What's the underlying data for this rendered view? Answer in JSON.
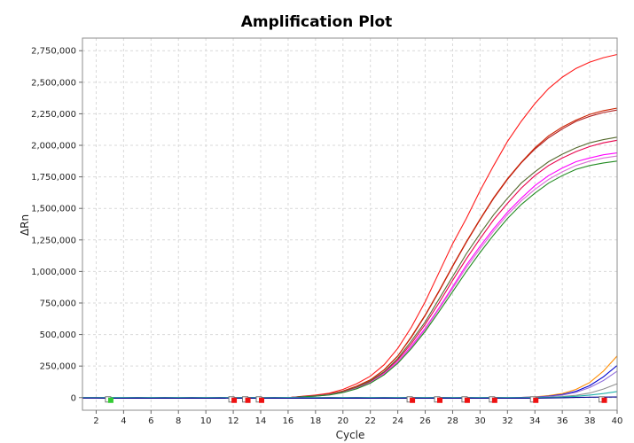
{
  "chart_data": {
    "type": "line",
    "title": "Amplification Plot",
    "xlabel": "Cycle",
    "ylabel": "ΔRn",
    "xlim": [
      1,
      40
    ],
    "ylim": [
      -100000,
      2850000
    ],
    "grid": true,
    "legend": "none",
    "x_ticks": [
      2,
      4,
      6,
      8,
      10,
      12,
      14,
      16,
      18,
      20,
      22,
      24,
      26,
      28,
      30,
      32,
      34,
      36,
      38,
      40
    ],
    "y_ticks": [
      0,
      250000,
      500000,
      750000,
      1000000,
      1250000,
      1500000,
      1750000,
      2000000,
      2250000,
      2500000,
      2750000
    ],
    "x": [
      1,
      2,
      3,
      4,
      5,
      6,
      7,
      8,
      9,
      10,
      11,
      12,
      13,
      14,
      15,
      16,
      17,
      18,
      19,
      20,
      21,
      22,
      23,
      24,
      25,
      26,
      27,
      28,
      29,
      30,
      31,
      32,
      33,
      34,
      35,
      36,
      37,
      38,
      39,
      40
    ],
    "series": [
      {
        "color": "#ff1a1a",
        "values": [
          0,
          0,
          0,
          0,
          0,
          0,
          0,
          0,
          0,
          0,
          0,
          0,
          0,
          0,
          0,
          0,
          10000,
          20000,
          35000,
          65000,
          110000,
          170000,
          260000,
          390000,
          560000,
          760000,
          990000,
          1220000,
          1420000,
          1640000,
          1840000,
          2030000,
          2190000,
          2330000,
          2450000,
          2540000,
          2610000,
          2660000,
          2695000,
          2720000
        ]
      },
      {
        "color": "#b22222",
        "values": [
          0,
          0,
          0,
          0,
          0,
          0,
          0,
          0,
          0,
          0,
          0,
          0,
          0,
          0,
          0,
          0,
          8000,
          16000,
          28000,
          52000,
          90000,
          140000,
          220000,
          330000,
          480000,
          650000,
          840000,
          1040000,
          1230000,
          1410000,
          1580000,
          1730000,
          1860000,
          1970000,
          2060000,
          2130000,
          2190000,
          2230000,
          2260000,
          2280000
        ]
      },
      {
        "color": "#cc2200",
        "values": [
          0,
          0,
          0,
          0,
          0,
          0,
          0,
          0,
          0,
          0,
          0,
          0,
          0,
          0,
          0,
          0,
          8000,
          16000,
          28000,
          52000,
          90000,
          140000,
          220000,
          330000,
          485000,
          655000,
          845000,
          1045000,
          1235000,
          1415000,
          1585000,
          1735000,
          1865000,
          1980000,
          2075000,
          2145000,
          2200000,
          2245000,
          2275000,
          2295000
        ]
      },
      {
        "color": "#e8004c",
        "values": [
          0,
          0,
          0,
          0,
          0,
          0,
          0,
          0,
          0,
          0,
          0,
          0,
          0,
          0,
          0,
          0,
          7000,
          14000,
          25000,
          46000,
          80000,
          128000,
          200000,
          300000,
          430000,
          580000,
          750000,
          930000,
          1100000,
          1260000,
          1410000,
          1540000,
          1660000,
          1760000,
          1840000,
          1900000,
          1950000,
          1990000,
          2020000,
          2040000
        ]
      },
      {
        "color": "#556b2f",
        "values": [
          0,
          0,
          0,
          0,
          0,
          0,
          0,
          0,
          0,
          0,
          0,
          0,
          0,
          0,
          0,
          0,
          7000,
          14000,
          25000,
          47000,
          82000,
          132000,
          205000,
          310000,
          450000,
          600000,
          780000,
          960000,
          1140000,
          1300000,
          1450000,
          1580000,
          1700000,
          1790000,
          1870000,
          1930000,
          1980000,
          2020000,
          2045000,
          2065000
        ]
      },
      {
        "color": "#ff00ff",
        "values": [
          0,
          0,
          0,
          0,
          0,
          0,
          0,
          0,
          0,
          0,
          0,
          0,
          0,
          0,
          0,
          0,
          6000,
          12000,
          22000,
          42000,
          75000,
          120000,
          190000,
          285000,
          410000,
          550000,
          710000,
          880000,
          1050000,
          1200000,
          1340000,
          1470000,
          1580000,
          1680000,
          1760000,
          1820000,
          1870000,
          1900000,
          1925000,
          1940000
        ]
      },
      {
        "color": "#da70d6",
        "values": [
          0,
          0,
          0,
          0,
          0,
          0,
          0,
          0,
          0,
          0,
          0,
          0,
          0,
          0,
          0,
          0,
          6000,
          12000,
          22000,
          41000,
          73000,
          118000,
          186000,
          280000,
          400000,
          540000,
          700000,
          865000,
          1030000,
          1180000,
          1320000,
          1450000,
          1560000,
          1650000,
          1730000,
          1790000,
          1840000,
          1875000,
          1900000,
          1915000
        ]
      },
      {
        "color": "#228b22",
        "values": [
          0,
          0,
          0,
          0,
          0,
          0,
          0,
          0,
          0,
          0,
          0,
          0,
          0,
          0,
          0,
          0,
          6000,
          12000,
          21000,
          40000,
          70000,
          114000,
          180000,
          272000,
          390000,
          525000,
          680000,
          840000,
          1000000,
          1150000,
          1290000,
          1420000,
          1530000,
          1620000,
          1700000,
          1760000,
          1810000,
          1840000,
          1860000,
          1875000
        ]
      },
      {
        "color": "#ff8c00",
        "values": [
          0,
          0,
          0,
          0,
          0,
          0,
          0,
          0,
          0,
          0,
          0,
          0,
          0,
          0,
          0,
          0,
          0,
          0,
          0,
          0,
          0,
          0,
          0,
          0,
          0,
          0,
          0,
          0,
          0,
          0,
          0,
          0,
          2000,
          6000,
          15000,
          32000,
          65000,
          120000,
          210000,
          330000
        ]
      },
      {
        "color": "#0000cd",
        "values": [
          0,
          0,
          0,
          0,
          0,
          0,
          0,
          0,
          0,
          0,
          0,
          0,
          0,
          0,
          0,
          0,
          0,
          0,
          0,
          0,
          0,
          0,
          0,
          0,
          0,
          0,
          0,
          0,
          0,
          0,
          0,
          0,
          1000,
          4000,
          11000,
          24000,
          50000,
          95000,
          165000,
          255000
        ]
      },
      {
        "color": "#9370db",
        "values": [
          0,
          0,
          0,
          0,
          0,
          0,
          0,
          0,
          0,
          0,
          0,
          0,
          0,
          0,
          0,
          0,
          0,
          0,
          0,
          0,
          0,
          0,
          0,
          0,
          0,
          0,
          0,
          0,
          0,
          0,
          0,
          0,
          1000,
          3000,
          9000,
          20000,
          42000,
          80000,
          135000,
          210000
        ]
      },
      {
        "color": "#909090",
        "values": [
          0,
          0,
          0,
          0,
          0,
          0,
          0,
          0,
          0,
          0,
          0,
          0,
          0,
          0,
          0,
          0,
          0,
          0,
          0,
          0,
          0,
          0,
          0,
          0,
          0,
          0,
          0,
          0,
          0,
          0,
          0,
          0,
          0,
          1000,
          4000,
          9000,
          18000,
          36000,
          68000,
          110000
        ]
      },
      {
        "color": "#20b2aa",
        "values": [
          0,
          0,
          0,
          0,
          0,
          0,
          0,
          0,
          0,
          0,
          0,
          0,
          0,
          0,
          0,
          0,
          0,
          0,
          0,
          0,
          0,
          0,
          0,
          0,
          0,
          0,
          0,
          0,
          0,
          0,
          0,
          0,
          0,
          0,
          2000,
          5000,
          10000,
          20000,
          32000,
          48000
        ]
      },
      {
        "color": "#00008b",
        "values": [
          -4000,
          -4000,
          -5000,
          -5000,
          -4000,
          -5000,
          -4000,
          -5000,
          -4000,
          -5000,
          -4000,
          -5000,
          -4000,
          -5000,
          -4000,
          -5000,
          -4000,
          -5000,
          -4000,
          -5000,
          -4000,
          -5000,
          -4000,
          -5000,
          -4000,
          -5000,
          -4000,
          -5000,
          -4000,
          -5000,
          -4000,
          -5000,
          -4000,
          -5000,
          -3000,
          -2000,
          1000,
          3000,
          4000,
          5000
        ]
      }
    ],
    "markers": [
      {
        "x": 3,
        "color": "#33cc33"
      },
      {
        "x": 12,
        "color": "#ee1111"
      },
      {
        "x": 13,
        "color": "#ee1111"
      },
      {
        "x": 14,
        "color": "#ee1111"
      },
      {
        "x": 25,
        "color": "#ee1111"
      },
      {
        "x": 27,
        "color": "#ee1111"
      },
      {
        "x": 29,
        "color": "#ee1111"
      },
      {
        "x": 31,
        "color": "#ee1111"
      },
      {
        "x": 34,
        "color": "#ee1111"
      },
      {
        "x": 39,
        "color": "#ee1111"
      }
    ]
  }
}
